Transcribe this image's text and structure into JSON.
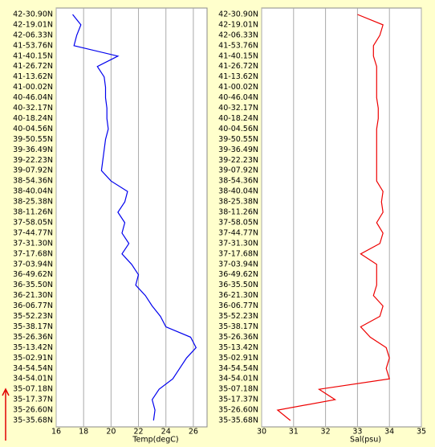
{
  "chart_data": [
    {
      "type": "line",
      "x_label": "Temp(degC)",
      "categories": [
        "42-30.90N",
        "42-19.01N",
        "42-06.33N",
        "41-53.76N",
        "41-40.15N",
        "41-26.72N",
        "41-13.62N",
        "41-00.02N",
        "40-46.04N",
        "40-32.17N",
        "40-18.24N",
        "40-04.56N",
        "39-50.55N",
        "39-36.49N",
        "39-22.23N",
        "39-07.92N",
        "38-54.36N",
        "38-40.04N",
        "38-25.38N",
        "38-11.26N",
        "37-58.05N",
        "37-44.77N",
        "37-31.30N",
        "37-17.68N",
        "37-03.94N",
        "36-49.62N",
        "36-35.50N",
        "36-21.30N",
        "36-06.77N",
        "35-52.23N",
        "35-38.17N",
        "35-26.36N",
        "35-13.42N",
        "35-02.91N",
        "34-54.54N",
        "34-54.01N",
        "35-07.18N",
        "35-17.37N",
        "35-26.60N",
        "35-35.68N"
      ],
      "series": [
        {
          "name": "Temp",
          "color": "#0000ee",
          "values": [
            17.2,
            17.8,
            17.5,
            17.3,
            20.5,
            19.0,
            19.5,
            19.6,
            19.6,
            19.7,
            19.7,
            19.8,
            19.6,
            19.5,
            19.4,
            19.3,
            20.0,
            21.2,
            21.0,
            20.5,
            21.0,
            20.8,
            21.3,
            20.8,
            21.5,
            22.0,
            21.8,
            22.5,
            23.0,
            23.6,
            24.0,
            25.8,
            26.2,
            25.5,
            25.0,
            24.5,
            23.5,
            23.0,
            23.2,
            23.1
          ]
        }
      ],
      "xlim": [
        16,
        27
      ],
      "xticks": [
        16,
        18,
        20,
        22,
        24,
        26
      ],
      "grid": true
    },
    {
      "type": "line",
      "x_label": "Sal(psu)",
      "categories": [
        "42-30.90N",
        "42-19.01N",
        "42-06.33N",
        "41-53.76N",
        "41-40.15N",
        "41-26.72N",
        "41-13.62N",
        "41-00.02N",
        "40-46.04N",
        "40-32.17N",
        "40-18.24N",
        "40-04.56N",
        "39-50.55N",
        "39-36.49N",
        "39-22.23N",
        "39-07.92N",
        "38-54.36N",
        "38-40.04N",
        "38-25.38N",
        "38-11.26N",
        "37-58.05N",
        "37-44.77N",
        "37-31.30N",
        "37-17.68N",
        "37-03.94N",
        "36-49.62N",
        "36-35.50N",
        "36-21.30N",
        "36-06.77N",
        "35-52.23N",
        "35-38.17N",
        "35-26.36N",
        "35-13.42N",
        "35-02.91N",
        "34-54.54N",
        "34-54.01N",
        "35-07.18N",
        "35-17.37N",
        "35-26.60N",
        "35-35.68N"
      ],
      "series": [
        {
          "name": "Sal",
          "color": "#ee0000",
          "values": [
            33.0,
            33.8,
            33.7,
            33.5,
            33.5,
            33.6,
            33.6,
            33.6,
            33.6,
            33.65,
            33.65,
            33.6,
            33.6,
            33.6,
            33.6,
            33.6,
            33.6,
            33.8,
            33.75,
            33.8,
            33.6,
            33.8,
            33.7,
            33.1,
            33.6,
            33.6,
            33.6,
            33.5,
            33.8,
            33.7,
            33.1,
            33.4,
            33.9,
            34.0,
            33.9,
            34.0,
            31.8,
            32.3,
            30.5,
            30.9
          ]
        }
      ],
      "xlim": [
        30,
        35
      ],
      "xticks": [
        30,
        31,
        32,
        33,
        34,
        35
      ],
      "grid": true
    }
  ]
}
